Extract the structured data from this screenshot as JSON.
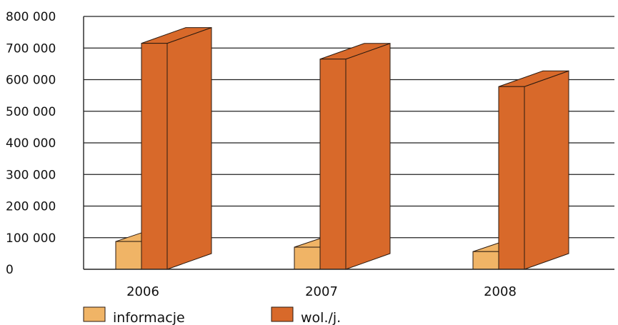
{
  "chart_data": {
    "type": "bar",
    "categories": [
      "2006",
      "2007",
      "2008"
    ],
    "series": [
      {
        "name": "informacje",
        "color": "#f0b466",
        "values": [
          88000,
          70000,
          56000
        ]
      },
      {
        "name": "wol./j.",
        "color": "#d8692a",
        "values": [
          715000,
          665000,
          578000
        ]
      }
    ],
    "ylim": [
      0,
      800000
    ],
    "yticks": [
      0,
      100000,
      200000,
      300000,
      400000,
      500000,
      600000,
      700000,
      800000
    ],
    "ytick_labels": [
      "0",
      "100 000",
      "200 000",
      "300 000",
      "400 000",
      "500 000",
      "600 000",
      "700 000",
      "800 000"
    ],
    "grid": true,
    "legend": "bottom-left",
    "three_d": true
  }
}
